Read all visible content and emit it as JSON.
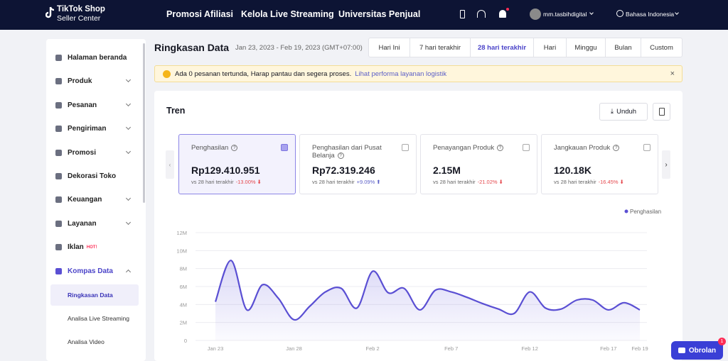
{
  "nav": {
    "logo_title": "TikTok Shop",
    "logo_subtitle": "Seller Center",
    "links": [
      "Promosi Afiliasi",
      "Kelola Live Streaming",
      "Universitas Penjual"
    ],
    "account": "mm.tasbihdigital",
    "language": "Bahasa Indonesia"
  },
  "sidebar": {
    "items": [
      {
        "label": "Halaman beranda",
        "expandable": false
      },
      {
        "label": "Produk",
        "expandable": true
      },
      {
        "label": "Pesanan",
        "expandable": true
      },
      {
        "label": "Pengiriman",
        "expandable": true
      },
      {
        "label": "Promosi",
        "expandable": true
      },
      {
        "label": "Dekorasi Toko",
        "expandable": false
      },
      {
        "label": "Keuangan",
        "expandable": true
      },
      {
        "label": "Layanan",
        "expandable": true
      },
      {
        "label": "Iklan",
        "expandable": false,
        "badge": "HOT!"
      },
      {
        "label": "Kompas Data",
        "expandable": true,
        "open": true
      }
    ],
    "subitems": [
      "Ringkasan Data",
      "Analisa Live Streaming",
      "Analisa Video"
    ],
    "active_subitem": 0
  },
  "header": {
    "title": "Ringkasan Data",
    "date_range": "Jan 23, 2023 - Feb 19, 2023 (GMT+07:00)",
    "tabs": [
      "Hari Ini",
      "7 hari terakhir",
      "28 hari terakhir",
      "Hari",
      "Minggu",
      "Bulan",
      "Custom"
    ],
    "active_tab": 2
  },
  "alert": {
    "message": "Ada 0 pesanan tertunda, Harap pantau dan segera proses.",
    "link": "Lihat performa layanan logistik",
    "close": "×"
  },
  "trend": {
    "title": "Tren",
    "download": "Unduh",
    "metrics": [
      {
        "label": "Penghasilan",
        "value": "Rp129.410.951",
        "compare": "vs 28 hari terakhir",
        "change": "-13.00%",
        "selected": true
      },
      {
        "label": "Penghasilan dari Pusat Belanja",
        "value": "Rp72.319.246",
        "compare": "vs 28 hari terakhir",
        "change": "+9.09%",
        "selected": false
      },
      {
        "label": "Penayangan Produk",
        "value": "2.15M",
        "compare": "vs 28 hari terakhir",
        "change": "-21.02%",
        "selected": false
      },
      {
        "label": "Jangkauan Produk",
        "value": "120.18K",
        "compare": "vs 28 hari terakhir",
        "change": "-16.45%",
        "selected": false
      }
    ]
  },
  "chart_data": {
    "type": "line",
    "categories": [
      "Jan 23",
      null,
      null,
      null,
      null,
      "Jan 28",
      null,
      null,
      null,
      null,
      "Feb 2",
      null,
      null,
      null,
      null,
      "Feb 7",
      null,
      null,
      null,
      null,
      "Feb 12",
      null,
      null,
      null,
      null,
      "Feb 17",
      null,
      "Feb 19"
    ],
    "series": [
      {
        "name": "Penghasilan",
        "color": "#5a4fd3",
        "values": [
          4.3,
          8.9,
          3.4,
          6.2,
          4.7,
          2.3,
          3.8,
          5.4,
          5.8,
          3.6,
          7.7,
          5.3,
          5.8,
          3.4,
          5.6,
          5.4,
          4.8,
          4.1,
          3.5,
          3.0,
          5.4,
          3.6,
          3.5,
          4.5,
          4.5,
          3.4,
          4.2,
          3.4
        ]
      }
    ],
    "ylim": [
      0,
      12
    ],
    "yticks": [
      0,
      {
        "value": 2,
        "label": "2M"
      },
      {
        "value": 4,
        "label": "4M"
      },
      {
        "value": 6,
        "label": "6M"
      },
      {
        "value": 8,
        "label": "8M"
      },
      {
        "value": 10,
        "label": "10M"
      },
      {
        "value": 12,
        "label": "12M"
      }
    ],
    "grid": true,
    "legend": "top-right",
    "area": true
  },
  "chat": {
    "label": "Obrolan",
    "badge": "1"
  }
}
